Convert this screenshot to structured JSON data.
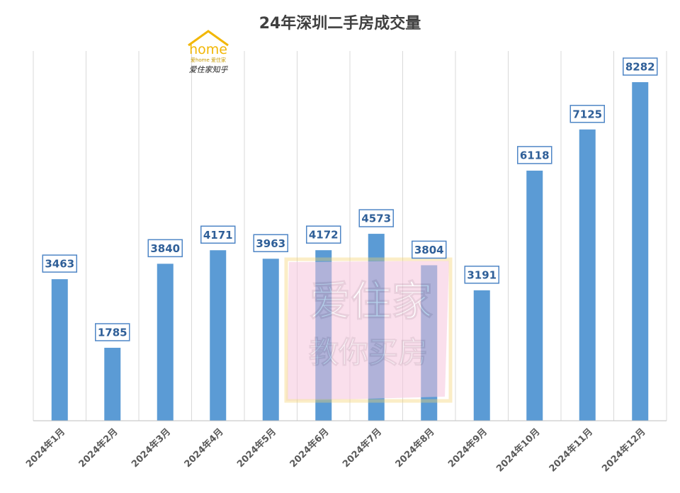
{
  "chart_data": {
    "type": "bar",
    "title": "24年深圳二手房成交量",
    "categories": [
      "2024年1月",
      "2024年2月",
      "2024年3月",
      "2024年4月",
      "2024年5月",
      "2024年6月",
      "2024年7月",
      "2024年8月",
      "2024年9月",
      "2024年10月",
      "2024年11月",
      "2024年12月"
    ],
    "values": [
      3463,
      1785,
      3840,
      4171,
      3963,
      4172,
      4573,
      3804,
      3191,
      6118,
      7125,
      8282
    ],
    "xlabel": "",
    "ylabel": "",
    "ylim": [
      0,
      8282
    ],
    "grid": "vertical",
    "data_labels": true,
    "colors": {
      "bar": "#5b9bd5",
      "label_border": "#4f86c6",
      "label_text": "#2f5f98"
    }
  },
  "logo": {
    "brand": "home",
    "tagline": "爱home 爱住家",
    "signature": "爱住家知乎"
  },
  "watermark": {
    "line1": "爱住家",
    "line2": "教你买房"
  }
}
